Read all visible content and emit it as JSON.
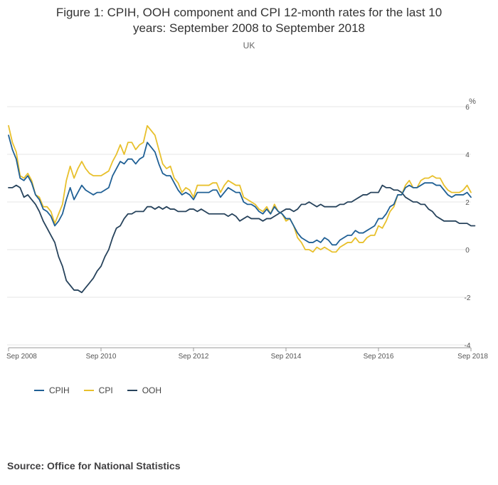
{
  "title_lines": [
    "Figure 1: CPIH, OOH component and CPI 12-month rates for the last 10",
    "years: September 2008 to September 2018"
  ],
  "subtitle": "UK",
  "source": "Source: Office for National Statistics",
  "colors": {
    "CPIH": "#206095",
    "CPI": "#e8c02c",
    "OOH": "#27435c",
    "grid": "#e6e6e6",
    "axis": "#999999"
  },
  "chart_data": {
    "type": "line",
    "title": "Figure 1: CPIH, OOH component and CPI 12-month rates for the last 10 years: September 2008 to September 2018",
    "subtitle": "UK",
    "ylabel": "%",
    "ylim": [
      -4,
      6
    ],
    "yticks": [
      6,
      4,
      2,
      0,
      -2,
      -4
    ],
    "grid": true,
    "legend_position": "bottom-left",
    "x_tick_labels": [
      "Sep 2008",
      "Sep 2010",
      "Sep 2012",
      "Sep 2014",
      "Sep 2016",
      "Sep 2018"
    ],
    "x_tick_indices": [
      0,
      24,
      48,
      72,
      96,
      120
    ],
    "x_start": "2008-09",
    "x_end": "2018-09",
    "series": [
      {
        "name": "CPIH",
        "values": [
          4.8,
          4.2,
          3.8,
          3.0,
          2.9,
          3.1,
          2.8,
          2.3,
          2.1,
          1.7,
          1.6,
          1.4,
          1.0,
          1.2,
          1.5,
          2.1,
          2.6,
          2.1,
          2.4,
          2.7,
          2.5,
          2.4,
          2.3,
          2.4,
          2.4,
          2.5,
          2.6,
          3.1,
          3.4,
          3.7,
          3.6,
          3.8,
          3.8,
          3.6,
          3.8,
          3.9,
          4.5,
          4.3,
          4.1,
          3.6,
          3.2,
          3.1,
          3.1,
          2.8,
          2.5,
          2.3,
          2.4,
          2.3,
          2.1,
          2.4,
          2.4,
          2.4,
          2.4,
          2.5,
          2.5,
          2.2,
          2.4,
          2.6,
          2.5,
          2.4,
          2.4,
          2.0,
          1.9,
          1.9,
          1.8,
          1.6,
          1.5,
          1.7,
          1.5,
          1.8,
          1.6,
          1.5,
          1.3,
          1.3,
          1.0,
          0.7,
          0.5,
          0.4,
          0.3,
          0.3,
          0.4,
          0.3,
          0.5,
          0.4,
          0.2,
          0.2,
          0.4,
          0.5,
          0.6,
          0.6,
          0.8,
          0.7,
          0.7,
          0.8,
          0.9,
          1.0,
          1.3,
          1.3,
          1.5,
          1.8,
          1.9,
          2.3,
          2.3,
          2.6,
          2.7,
          2.6,
          2.6,
          2.7,
          2.8,
          2.8,
          2.8,
          2.7,
          2.7,
          2.5,
          2.3,
          2.2,
          2.3,
          2.3,
          2.3,
          2.4,
          2.2
        ]
      },
      {
        "name": "CPI",
        "values": [
          5.2,
          4.5,
          4.1,
          3.1,
          3.0,
          3.2,
          2.9,
          2.3,
          2.2,
          1.8,
          1.8,
          1.6,
          1.1,
          1.5,
          1.9,
          2.9,
          3.5,
          3.0,
          3.4,
          3.7,
          3.4,
          3.2,
          3.1,
          3.1,
          3.1,
          3.2,
          3.3,
          3.7,
          4.0,
          4.4,
          4.0,
          4.5,
          4.5,
          4.2,
          4.4,
          4.5,
          5.2,
          5.0,
          4.8,
          4.2,
          3.6,
          3.4,
          3.5,
          3.0,
          2.8,
          2.4,
          2.6,
          2.5,
          2.2,
          2.7,
          2.7,
          2.7,
          2.7,
          2.8,
          2.8,
          2.4,
          2.7,
          2.9,
          2.8,
          2.7,
          2.7,
          2.2,
          2.1,
          2.0,
          1.9,
          1.7,
          1.6,
          1.8,
          1.5,
          1.9,
          1.6,
          1.5,
          1.2,
          1.3,
          1.0,
          0.5,
          0.3,
          0.0,
          0.0,
          -0.1,
          0.1,
          0.0,
          0.1,
          0.0,
          -0.1,
          -0.1,
          0.1,
          0.2,
          0.3,
          0.3,
          0.5,
          0.3,
          0.3,
          0.5,
          0.6,
          0.6,
          1.0,
          0.9,
          1.2,
          1.6,
          1.8,
          2.3,
          2.3,
          2.7,
          2.9,
          2.6,
          2.6,
          2.9,
          3.0,
          3.0,
          3.1,
          3.0,
          3.0,
          2.7,
          2.5,
          2.4,
          2.4,
          2.4,
          2.5,
          2.7,
          2.4
        ]
      },
      {
        "name": "OOH",
        "values": [
          2.6,
          2.6,
          2.7,
          2.6,
          2.2,
          2.3,
          2.1,
          1.9,
          1.6,
          1.2,
          0.9,
          0.6,
          0.3,
          -0.3,
          -0.7,
          -1.3,
          -1.5,
          -1.7,
          -1.7,
          -1.8,
          -1.6,
          -1.4,
          -1.2,
          -0.9,
          -0.7,
          -0.3,
          0.0,
          0.5,
          0.9,
          1.0,
          1.3,
          1.5,
          1.5,
          1.6,
          1.6,
          1.6,
          1.8,
          1.8,
          1.7,
          1.8,
          1.7,
          1.8,
          1.7,
          1.7,
          1.6,
          1.6,
          1.6,
          1.7,
          1.7,
          1.6,
          1.7,
          1.6,
          1.5,
          1.5,
          1.5,
          1.5,
          1.5,
          1.4,
          1.5,
          1.4,
          1.2,
          1.3,
          1.4,
          1.3,
          1.3,
          1.3,
          1.2,
          1.3,
          1.3,
          1.4,
          1.5,
          1.6,
          1.7,
          1.7,
          1.6,
          1.7,
          1.9,
          1.9,
          2.0,
          1.9,
          1.8,
          1.9,
          1.8,
          1.8,
          1.8,
          1.8,
          1.9,
          1.9,
          2.0,
          2.0,
          2.1,
          2.2,
          2.3,
          2.3,
          2.4,
          2.4,
          2.4,
          2.7,
          2.6,
          2.6,
          2.5,
          2.5,
          2.4,
          2.2,
          2.1,
          2.0,
          2.0,
          1.9,
          1.9,
          1.7,
          1.6,
          1.4,
          1.3,
          1.2,
          1.2,
          1.2,
          1.2,
          1.1,
          1.1,
          1.1,
          1.0,
          1.0
        ]
      }
    ]
  }
}
